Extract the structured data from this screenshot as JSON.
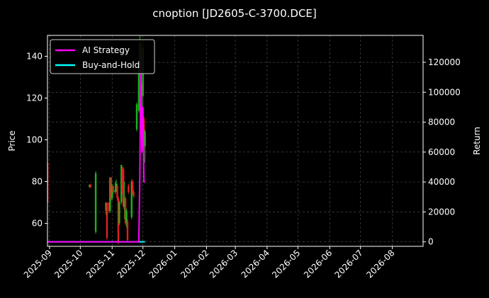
{
  "chart_data": {
    "type": "line",
    "title": "cnoption [JD2605-C-3700.DCE]",
    "xlabel": "",
    "ylabel": "Price",
    "y2label": "Return",
    "xlim": [
      "2025-08-30",
      "2026-08-31"
    ],
    "ylim": [
      49,
      150
    ],
    "y2lim": [
      -3000,
      138000
    ],
    "x_ticks": [
      "2025-09",
      "2025-10",
      "2025-11",
      "2025-12",
      "2026-01",
      "2026-02",
      "2026-03",
      "2026-04",
      "2026-05",
      "2026-06",
      "2026-07",
      "2026-08"
    ],
    "y_ticks": [
      60,
      80,
      100,
      120,
      140
    ],
    "y2_ticks": [
      0,
      20000,
      40000,
      60000,
      80000,
      100000,
      120000
    ],
    "grid": true,
    "legend_position": "top-left",
    "colors": {
      "background": "#000000",
      "up": "#1db31d",
      "down": "#e02020",
      "strategy": "#ff00ff",
      "buyhold": "#00ffff",
      "grid": "#555555",
      "text": "#ffffff"
    },
    "candles": [
      {
        "date": "2025-08-30",
        "open": 89,
        "close": 70,
        "high": 90,
        "low": 69
      },
      {
        "date": "2025-10-10",
        "open": 77.5,
        "close": 78.5,
        "high": 78.5,
        "low": 77
      },
      {
        "date": "2025-10-11",
        "open": 78.5,
        "close": 77.5,
        "high": 79,
        "low": 77
      },
      {
        "date": "2025-10-16",
        "open": 56,
        "close": 84,
        "high": 85,
        "low": 55
      },
      {
        "date": "2025-10-26",
        "open": 66,
        "close": 70,
        "high": 70,
        "low": 64
      },
      {
        "date": "2025-10-27",
        "open": 70,
        "close": 53,
        "high": 70,
        "low": 52
      },
      {
        "date": "2025-10-29",
        "open": 70,
        "close": 66,
        "high": 70,
        "low": 65
      },
      {
        "date": "2025-10-30",
        "open": 66,
        "close": 82,
        "high": 82,
        "low": 65
      },
      {
        "date": "2025-10-31",
        "open": 82,
        "close": 72,
        "high": 82,
        "low": 71
      },
      {
        "date": "2025-11-01",
        "open": 72,
        "close": 78,
        "high": 79,
        "low": 71
      },
      {
        "date": "2025-11-02",
        "open": 78,
        "close": 75,
        "high": 78,
        "low": 74
      },
      {
        "date": "2025-11-04",
        "open": 75,
        "close": 76,
        "high": 80,
        "low": 74
      },
      {
        "date": "2025-11-05",
        "open": 76,
        "close": 79,
        "high": 81,
        "low": 75
      },
      {
        "date": "2025-11-06",
        "open": 78,
        "close": 72,
        "high": 79,
        "low": 71
      },
      {
        "date": "2025-11-07",
        "open": 72,
        "close": 51,
        "high": 73,
        "low": 50
      },
      {
        "date": "2025-11-08",
        "open": 60,
        "close": 70,
        "high": 71,
        "low": 59
      },
      {
        "date": "2025-11-10",
        "open": 70,
        "close": 88,
        "high": 88,
        "low": 69
      },
      {
        "date": "2025-11-11",
        "open": 86,
        "close": 75,
        "high": 87,
        "low": 74
      },
      {
        "date": "2025-11-12",
        "open": 86,
        "close": 68,
        "high": 87,
        "low": 67
      },
      {
        "date": "2025-11-13",
        "open": 68,
        "close": 72,
        "high": 80,
        "low": 62
      },
      {
        "date": "2025-11-14",
        "open": 72,
        "close": 60,
        "high": 73,
        "low": 59
      },
      {
        "date": "2025-11-15",
        "open": 60,
        "close": 66,
        "high": 67,
        "low": 58
      },
      {
        "date": "2025-11-16",
        "open": 61,
        "close": 52,
        "high": 62,
        "low": 51
      },
      {
        "date": "2025-11-17",
        "open": 78,
        "close": 75,
        "high": 79,
        "low": 74
      },
      {
        "date": "2025-11-20",
        "open": 63,
        "close": 80,
        "high": 81,
        "low": 62
      },
      {
        "date": "2025-11-21",
        "open": 80,
        "close": 75,
        "high": 81,
        "low": 74
      },
      {
        "date": "2025-11-22",
        "open": 75,
        "close": 73,
        "high": 76,
        "low": 72
      },
      {
        "date": "2025-11-25",
        "open": 105,
        "close": 117,
        "high": 118,
        "low": 104
      },
      {
        "date": "2025-11-27",
        "open": 114,
        "close": 135,
        "high": 136,
        "low": 113
      },
      {
        "date": "2025-11-28",
        "open": 135,
        "close": 146,
        "high": 150,
        "low": 134
      },
      {
        "date": "2025-11-29",
        "open": 146,
        "close": 126,
        "high": 147,
        "low": 125
      },
      {
        "date": "2025-11-30",
        "open": 126,
        "close": 121,
        "high": 127,
        "low": 120
      },
      {
        "date": "2025-12-01",
        "open": 121,
        "close": 144,
        "high": 148,
        "low": 115
      },
      {
        "date": "2025-12-02",
        "open": 110,
        "close": 97,
        "high": 111,
        "low": 96
      },
      {
        "date": "2025-12-03",
        "open": 97,
        "close": 104,
        "high": 105,
        "low": 89
      }
    ],
    "series": [
      {
        "name": "AI Strategy",
        "color": "#ff00ff",
        "axis": "right",
        "x": [
          "2025-08-30",
          "2025-11-25",
          "2025-11-27",
          "2025-11-28",
          "2025-11-29",
          "2025-11-30",
          "2025-12-01",
          "2025-12-02",
          "2025-12-03"
        ],
        "values": [
          0,
          0,
          0,
          45000,
          125000,
          60000,
          90000,
          40000,
          40000
        ]
      },
      {
        "name": "Buy-and-Hold",
        "color": "#00ffff",
        "axis": "right",
        "x": [
          "2025-08-30",
          "2025-12-03"
        ],
        "values": [
          0,
          0
        ]
      }
    ]
  }
}
